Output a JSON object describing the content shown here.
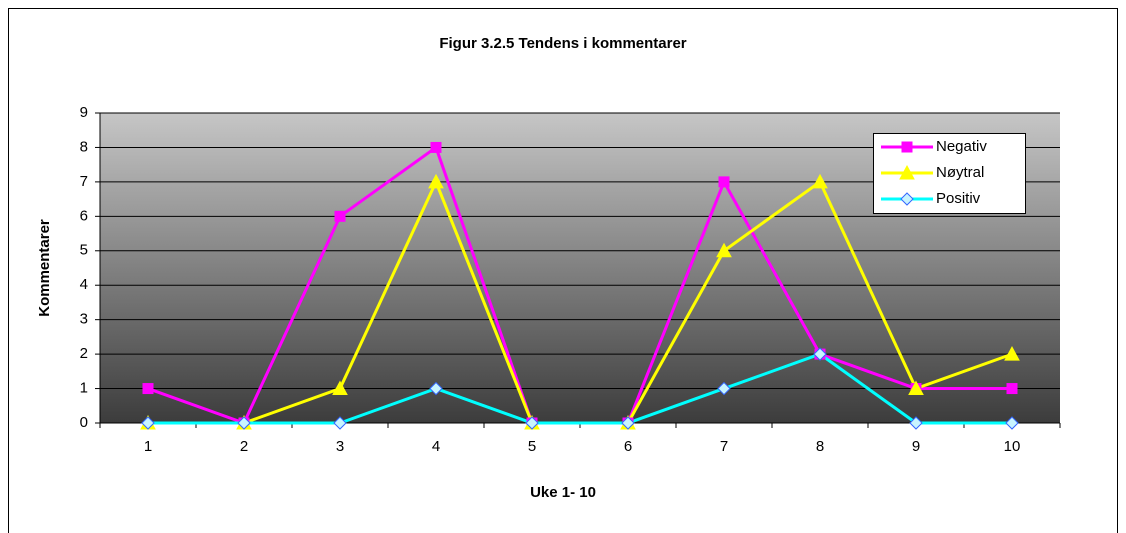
{
  "chart_data": {
    "type": "line",
    "title": "Figur 3.2.5 Tendens i kommentarer",
    "x_label": "Uke 1- 10",
    "y_label": "Kommentarer",
    "categories": [
      "1",
      "2",
      "3",
      "4",
      "5",
      "6",
      "7",
      "8",
      "9",
      "10"
    ],
    "series": [
      {
        "name": "Negativ",
        "color": "#ff00ff",
        "marker": "square",
        "values": [
          1,
          0,
          6,
          8,
          0,
          0,
          7,
          2,
          1,
          1
        ]
      },
      {
        "name": "Nøytral",
        "color": "#ffff00",
        "marker": "triangle",
        "values": [
          0,
          0,
          1,
          7,
          0,
          0,
          5,
          7,
          1,
          2
        ]
      },
      {
        "name": "Positiv",
        "color": "#00ffff",
        "marker": "diamond",
        "values": [
          0,
          0,
          0,
          1,
          0,
          0,
          1,
          2,
          0,
          0
        ]
      }
    ],
    "ylim": [
      0,
      9
    ],
    "yticks": [
      0,
      1,
      2,
      3,
      4,
      5,
      6,
      7,
      8,
      9
    ],
    "grid": true,
    "legend": "upper right"
  }
}
